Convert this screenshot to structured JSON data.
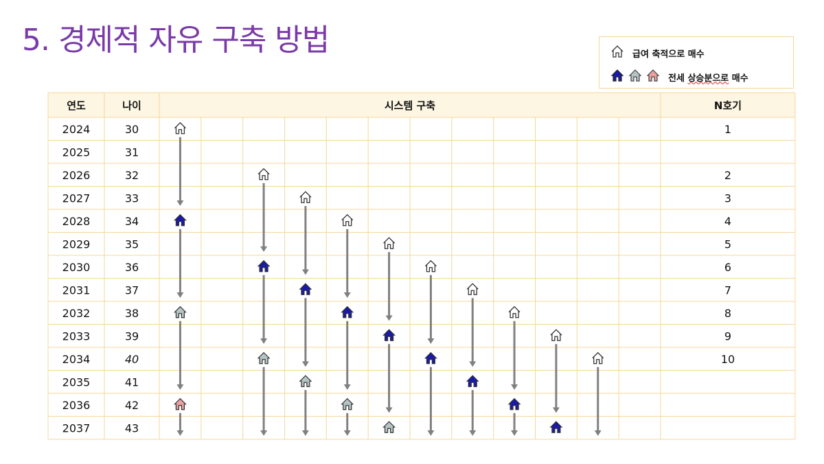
{
  "title": "5. 경제적 자유 구축 방법",
  "legend": {
    "item1": "급여 축적으로 매수",
    "item2_part1": "전세 ",
    "item2_part2": "상승분으로",
    "item2_part3": " 매수"
  },
  "table": {
    "headers": {
      "year": "연도",
      "age": "나이",
      "system": "시스템 구축",
      "n": "N호기"
    },
    "rows": [
      {
        "year": "2024",
        "age": "30",
        "n": "1"
      },
      {
        "year": "2025",
        "age": "31",
        "n": ""
      },
      {
        "year": "2026",
        "age": "32",
        "n": "2"
      },
      {
        "year": "2027",
        "age": "33",
        "n": "3"
      },
      {
        "year": "2028",
        "age": "34",
        "n": "4"
      },
      {
        "year": "2029",
        "age": "35",
        "n": "5"
      },
      {
        "year": "2030",
        "age": "36",
        "n": "6"
      },
      {
        "year": "2031",
        "age": "37",
        "n": "7"
      },
      {
        "year": "2032",
        "age": "38",
        "n": "8"
      },
      {
        "year": "2033",
        "age": "39",
        "n": "9"
      },
      {
        "year": "2034",
        "age": "40",
        "n": "10"
      },
      {
        "year": "2035",
        "age": "41",
        "n": ""
      },
      {
        "year": "2036",
        "age": "42",
        "n": ""
      },
      {
        "year": "2037",
        "age": "43",
        "n": ""
      }
    ]
  },
  "colors": {
    "title": "#7a3aa8",
    "grid_line": "#f5d79a",
    "header_bg": "#fdf6e3",
    "arrow": "#808080",
    "house_white": "#ffffff",
    "house_blue": "#1a1aa8",
    "house_gray": "#b5c4c4",
    "house_pink": "#e8a0a0"
  },
  "houses": [
    {
      "col": 0,
      "row": 0,
      "kind": "white"
    },
    {
      "col": 0,
      "row": 4,
      "kind": "blue"
    },
    {
      "col": 0,
      "row": 8,
      "kind": "gray"
    },
    {
      "col": 0,
      "row": 12,
      "kind": "pink"
    },
    {
      "col": 2,
      "row": 2,
      "kind": "white"
    },
    {
      "col": 2,
      "row": 6,
      "kind": "blue"
    },
    {
      "col": 2,
      "row": 10,
      "kind": "gray"
    },
    {
      "col": 3,
      "row": 3,
      "kind": "white"
    },
    {
      "col": 3,
      "row": 7,
      "kind": "blue"
    },
    {
      "col": 3,
      "row": 11,
      "kind": "gray"
    },
    {
      "col": 4,
      "row": 4,
      "kind": "white"
    },
    {
      "col": 4,
      "row": 8,
      "kind": "blue"
    },
    {
      "col": 4,
      "row": 12,
      "kind": "gray"
    },
    {
      "col": 5,
      "row": 5,
      "kind": "white"
    },
    {
      "col": 5,
      "row": 9,
      "kind": "blue"
    },
    {
      "col": 5,
      "row": 13,
      "kind": "gray"
    },
    {
      "col": 6,
      "row": 6,
      "kind": "white"
    },
    {
      "col": 6,
      "row": 10,
      "kind": "blue"
    },
    {
      "col": 7,
      "row": 7,
      "kind": "white"
    },
    {
      "col": 7,
      "row": 11,
      "kind": "blue"
    },
    {
      "col": 8,
      "row": 8,
      "kind": "white"
    },
    {
      "col": 8,
      "row": 12,
      "kind": "blue"
    },
    {
      "col": 9,
      "row": 9,
      "kind": "white"
    },
    {
      "col": 9,
      "row": 13,
      "kind": "blue"
    },
    {
      "col": 10,
      "row": 10,
      "kind": "white"
    }
  ],
  "arrows": [
    {
      "col": 0,
      "from": 0,
      "to": 3
    },
    {
      "col": 0,
      "from": 4,
      "to": 7
    },
    {
      "col": 0,
      "from": 8,
      "to": 11
    },
    {
      "col": 0,
      "from": 12,
      "to": 13
    },
    {
      "col": 2,
      "from": 2,
      "to": 5
    },
    {
      "col": 2,
      "from": 6,
      "to": 9
    },
    {
      "col": 2,
      "from": 10,
      "to": 13
    },
    {
      "col": 3,
      "from": 3,
      "to": 6
    },
    {
      "col": 3,
      "from": 7,
      "to": 10
    },
    {
      "col": 3,
      "from": 11,
      "to": 13
    },
    {
      "col": 4,
      "from": 4,
      "to": 7
    },
    {
      "col": 4,
      "from": 8,
      "to": 11
    },
    {
      "col": 4,
      "from": 12,
      "to": 13
    },
    {
      "col": 5,
      "from": 5,
      "to": 8
    },
    {
      "col": 5,
      "from": 9,
      "to": 12
    },
    {
      "col": 6,
      "from": 6,
      "to": 9
    },
    {
      "col": 6,
      "from": 10,
      "to": 13
    },
    {
      "col": 7,
      "from": 7,
      "to": 10
    },
    {
      "col": 7,
      "from": 11,
      "to": 13
    },
    {
      "col": 8,
      "from": 8,
      "to": 11
    },
    {
      "col": 8,
      "from": 12,
      "to": 13
    },
    {
      "col": 9,
      "from": 9,
      "to": 12
    },
    {
      "col": 10,
      "from": 10,
      "to": 13
    }
  ]
}
